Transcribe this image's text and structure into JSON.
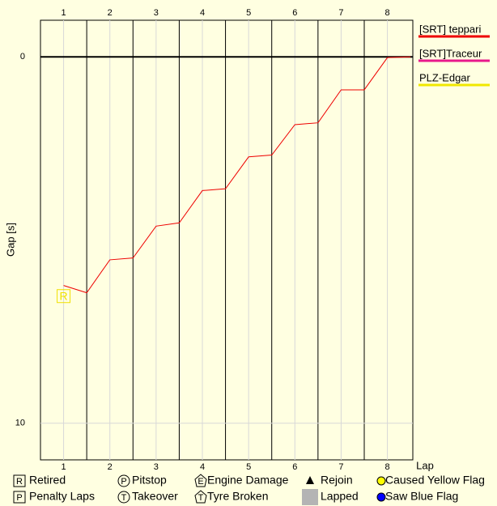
{
  "chart_data": {
    "type": "line",
    "x_label": "Lap",
    "y_label": "Gap [s]",
    "x": [
      1,
      1.5,
      2,
      2.5,
      3,
      3.5,
      4,
      4.5,
      5,
      5.5,
      6,
      6.5,
      7,
      7.5,
      8,
      8.5
    ],
    "series": [
      {
        "name": "[SRT] teppari",
        "color": "#ee0000",
        "values": [
          6.24,
          6.44,
          5.54,
          5.49,
          4.62,
          4.53,
          3.65,
          3.6,
          2.73,
          2.68,
          1.85,
          1.8,
          0.9,
          0.9,
          0.02,
          0
        ]
      },
      {
        "name": "[SRT]Traceur",
        "color": "#e8198c",
        "values": [
          null,
          null,
          null,
          null,
          null,
          null,
          null,
          null,
          null,
          null,
          null,
          null,
          null,
          null,
          null,
          null
        ]
      },
      {
        "name": "PLZ-Edgar",
        "color": "#f0e800",
        "values": [
          null,
          null,
          null,
          null,
          null,
          null,
          null,
          null,
          null,
          null,
          null,
          null,
          null,
          null,
          null,
          null
        ]
      }
    ],
    "xlim": [
      0.5,
      8.55
    ],
    "xticks": [
      1,
      2,
      3,
      4,
      5,
      6,
      7,
      8
    ],
    "lap_dividers": [
      1.5,
      2.5,
      3.5,
      4.5,
      5.5,
      6.5,
      7.5
    ],
    "ylim": [
      -1,
      11
    ],
    "yticks": [
      0,
      10
    ],
    "y_inverted": true,
    "grid": true,
    "events": [
      {
        "label": "R",
        "x": 1,
        "y": 6.53,
        "color": "#f0e000"
      }
    ],
    "symbol_legend": [
      {
        "icon": "R",
        "label": "Retired"
      },
      {
        "icon": "P",
        "label": "Pitstop"
      },
      {
        "icon": "E",
        "label": "Engine Damage"
      },
      {
        "label": "Rejoin"
      },
      {
        "label": "Caused Yellow Flag"
      },
      {
        "icon": "P",
        "label": "Penalty Laps"
      },
      {
        "icon": "T",
        "label": "Takeover"
      },
      {
        "icon": "T",
        "label": "Tyre Broken"
      },
      {
        "label": "Lapped"
      },
      {
        "label": "Saw Blue Flag"
      }
    ]
  }
}
